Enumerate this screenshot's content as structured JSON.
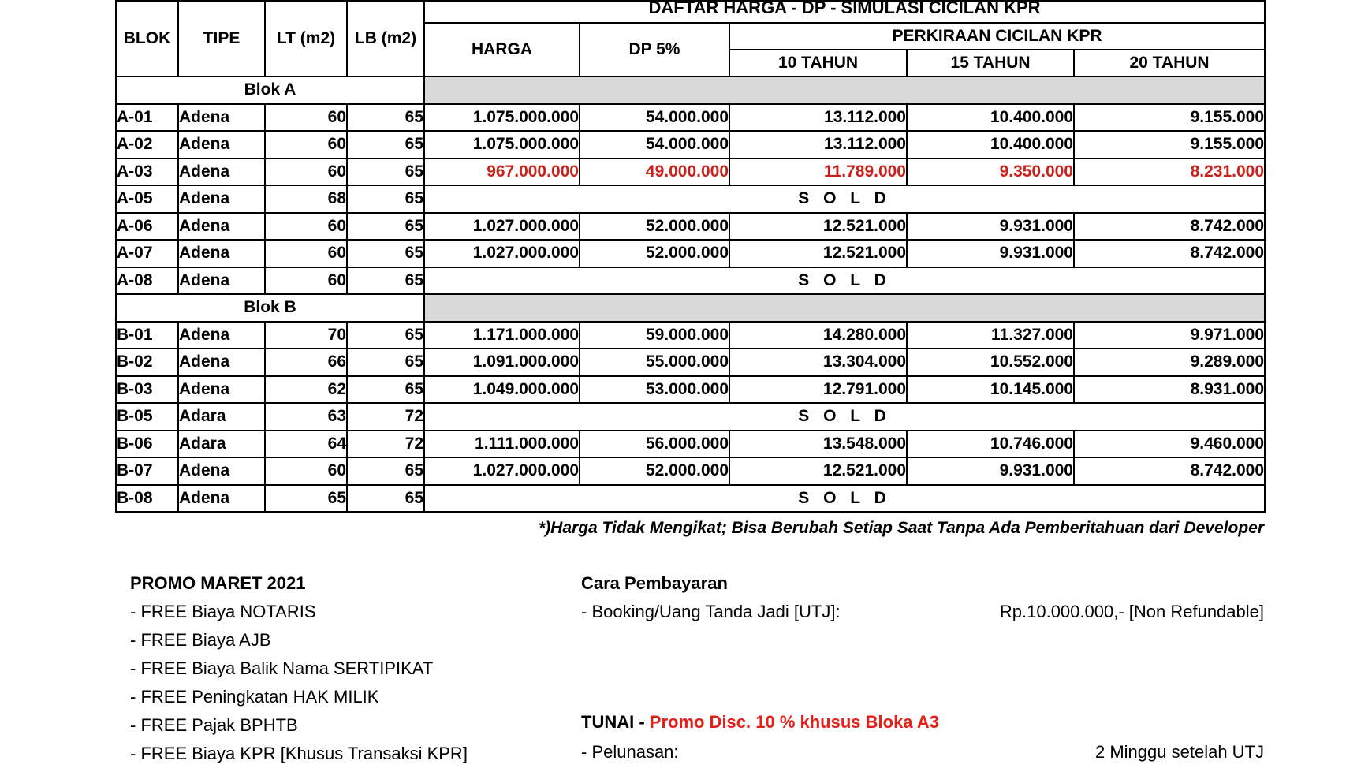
{
  "title": "DAFTAR HARGA - DP - SIMULASI CICILAN KPR",
  "table": {
    "col_headers": {
      "blok": "BLOK",
      "tipe": "TIPE",
      "lt": "LT (m2)",
      "lb": "LB (m2)",
      "harga": "HARGA",
      "dp": "DP 5%",
      "cicilan_group": "PERKIRAAN CICILAN KPR",
      "t10": "10 TAHUN",
      "t15": "15 TAHUN",
      "t20": "20 TAHUN"
    },
    "sold_label": "S O L D",
    "sections": [
      {
        "label": "Blok A",
        "rows": [
          {
            "blok": "A-01",
            "tipe": "Adena",
            "lt": "60",
            "lb": "65",
            "harga": "1.075.000.000",
            "dp": "54.000.000",
            "t10": "13.112.000",
            "t15": "10.400.000",
            "t20": "9.155.000",
            "sold": false,
            "highlight": false
          },
          {
            "blok": "A-02",
            "tipe": "Adena",
            "lt": "60",
            "lb": "65",
            "harga": "1.075.000.000",
            "dp": "54.000.000",
            "t10": "13.112.000",
            "t15": "10.400.000",
            "t20": "9.155.000",
            "sold": false,
            "highlight": false
          },
          {
            "blok": "A-03",
            "tipe": "Adena",
            "lt": "60",
            "lb": "65",
            "harga": "967.000.000",
            "dp": "49.000.000",
            "t10": "11.789.000",
            "t15": "9.350.000",
            "t20": "8.231.000",
            "sold": false,
            "highlight": true
          },
          {
            "blok": "A-05",
            "tipe": "Adena",
            "lt": "68",
            "lb": "65",
            "sold": true
          },
          {
            "blok": "A-06",
            "tipe": "Adena",
            "lt": "60",
            "lb": "65",
            "harga": "1.027.000.000",
            "dp": "52.000.000",
            "t10": "12.521.000",
            "t15": "9.931.000",
            "t20": "8.742.000",
            "sold": false,
            "highlight": false
          },
          {
            "blok": "A-07",
            "tipe": "Adena",
            "lt": "60",
            "lb": "65",
            "harga": "1.027.000.000",
            "dp": "52.000.000",
            "t10": "12.521.000",
            "t15": "9.931.000",
            "t20": "8.742.000",
            "sold": false,
            "highlight": false
          },
          {
            "blok": "A-08",
            "tipe": "Adena",
            "lt": "60",
            "lb": "65",
            "sold": true
          }
        ]
      },
      {
        "label": "Blok B",
        "rows": [
          {
            "blok": "B-01",
            "tipe": "Adena",
            "lt": "70",
            "lb": "65",
            "harga": "1.171.000.000",
            "dp": "59.000.000",
            "t10": "14.280.000",
            "t15": "11.327.000",
            "t20": "9.971.000",
            "sold": false,
            "highlight": false
          },
          {
            "blok": "B-02",
            "tipe": "Adena",
            "lt": "66",
            "lb": "65",
            "harga": "1.091.000.000",
            "dp": "55.000.000",
            "t10": "13.304.000",
            "t15": "10.552.000",
            "t20": "9.289.000",
            "sold": false,
            "highlight": false
          },
          {
            "blok": "B-03",
            "tipe": "Adena",
            "lt": "62",
            "lb": "65",
            "harga": "1.049.000.000",
            "dp": "53.000.000",
            "t10": "12.791.000",
            "t15": "10.145.000",
            "t20": "8.931.000",
            "sold": false,
            "highlight": false
          },
          {
            "blok": "B-05",
            "tipe": "Adara",
            "lt": "63",
            "lb": "72",
            "sold": true
          },
          {
            "blok": "B-06",
            "tipe": "Adara",
            "lt": "64",
            "lb": "72",
            "harga": "1.111.000.000",
            "dp": "56.000.000",
            "t10": "13.548.000",
            "t15": "10.746.000",
            "t20": "9.460.000",
            "sold": false,
            "highlight": false
          },
          {
            "blok": "B-07",
            "tipe": "Adena",
            "lt": "60",
            "lb": "65",
            "harga": "1.027.000.000",
            "dp": "52.000.000",
            "t10": "12.521.000",
            "t15": "9.931.000",
            "t20": "8.742.000",
            "sold": false,
            "highlight": false
          },
          {
            "blok": "B-08",
            "tipe": "Adena",
            "lt": "65",
            "lb": "65",
            "sold": true
          }
        ]
      }
    ]
  },
  "footnote": "*)Harga Tidak Mengikat; Bisa Berubah Setiap Saat Tanpa Ada Pemberitahuan dari Developer",
  "promo": {
    "title": "PROMO MARET 2021",
    "items": [
      "- FREE Biaya NOTARIS",
      "- FREE Biaya AJB",
      "- FREE Biaya Balik Nama SERTIPIKAT",
      "- FREE Peningkatan HAK MILIK",
      "- FREE Pajak BPHTB",
      "- FREE Biaya KPR [Khusus Transaksi KPR]"
    ]
  },
  "payment": {
    "title": "Cara Pembayaran",
    "booking_label": "- Booking/Uang Tanda Jadi [UTJ]:",
    "booking_value": "Rp.10.000.000,- [Non Refundable]",
    "tunai_label": "TUNAI - ",
    "tunai_promo": "Promo Disc. 10 % khusus Bloka A3",
    "pelunasan_label": "- Pelunasan:",
    "pelunasan_value": "2 Minggu setelah UTJ"
  },
  "colors": {
    "highlight_red": "#c9211c",
    "promo_red": "#e32119",
    "section_gray": "#d9d9d9",
    "border_black": "#000000"
  }
}
